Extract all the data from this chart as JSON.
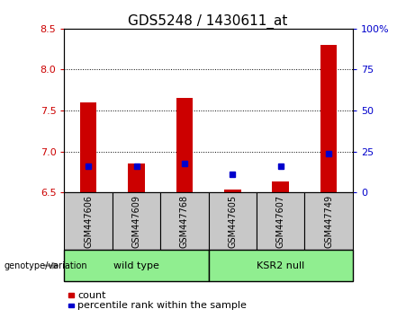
{
  "title": "GDS5248 / 1430611_at",
  "samples": [
    "GSM447606",
    "GSM447609",
    "GSM447768",
    "GSM447605",
    "GSM447607",
    "GSM447749"
  ],
  "group_labels": [
    "wild type",
    "KSR2 null"
  ],
  "red_bar_tops": [
    7.6,
    6.85,
    7.65,
    6.53,
    6.63,
    8.3
  ],
  "red_bar_bottom": 6.5,
  "blue_y_left": [
    6.82,
    6.82,
    6.85,
    6.72,
    6.82,
    6.97
  ],
  "ylim_left": [
    6.5,
    8.5
  ],
  "ylim_right": [
    0,
    100
  ],
  "yticks_left": [
    6.5,
    7.0,
    7.5,
    8.0,
    8.5
  ],
  "yticks_right": [
    0,
    25,
    50,
    75,
    100
  ],
  "ytick_labels_right": [
    "0",
    "25",
    "50",
    "75",
    "100%"
  ],
  "bar_color": "#cc0000",
  "blue_color": "#0000cc",
  "bar_width": 0.35,
  "label_count": "count",
  "label_percentile": "percentile rank within the sample",
  "genotype_label": "genotype/variation",
  "bg_color_xtick": "#c8c8c8",
  "bg_color_group": "#90ee90",
  "title_fontsize": 11,
  "tick_fontsize": 8,
  "sample_fontsize": 7,
  "legend_fontsize": 8,
  "group_fontsize": 8
}
